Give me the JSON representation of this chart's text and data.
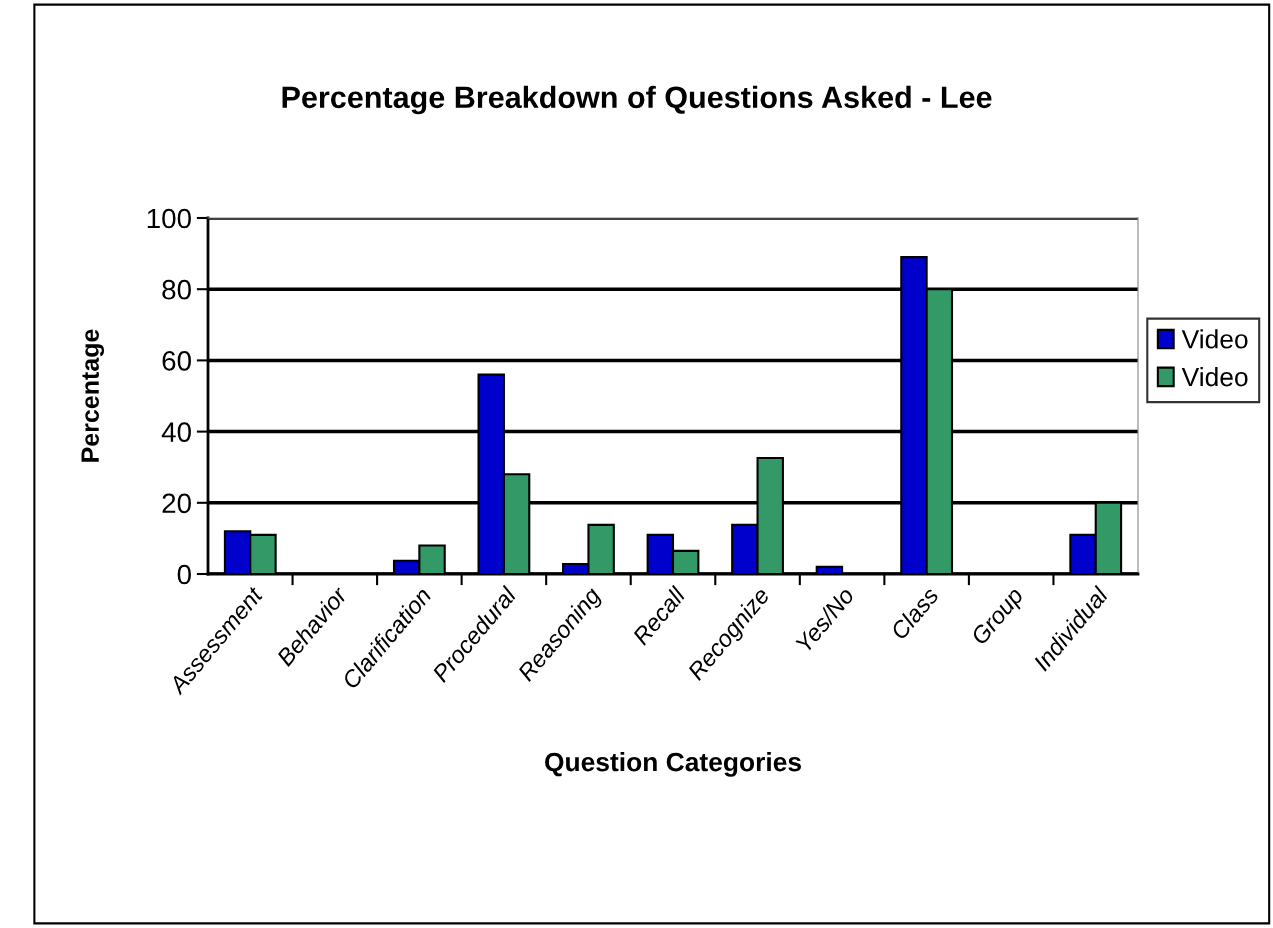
{
  "chart_data": {
    "type": "bar",
    "title": "Percentage Breakdown of Questions Asked - Lee",
    "xlabel": "Question Categories",
    "ylabel": "Percentage",
    "categories": [
      "Assessment",
      "Behavior",
      "Clarification",
      "Procedural",
      "Reasoning",
      "Recall",
      "Recognize",
      "Yes/No",
      "Class",
      "Group",
      "Individual"
    ],
    "series": [
      {
        "name": "Video",
        "color": "#0000cc",
        "values": [
          12,
          0,
          3.7,
          56,
          2.8,
          11,
          13.8,
          2,
          89,
          0,
          11
        ]
      },
      {
        "name": "Video",
        "color": "#339966",
        "values": [
          11,
          0,
          8,
          28,
          13.8,
          6.5,
          32.6,
          0,
          80,
          0,
          20
        ]
      }
    ],
    "ylim": [
      0,
      100
    ],
    "yticks": [
      0,
      20,
      40,
      60,
      80,
      100
    ],
    "grid": "y",
    "legend": "right"
  }
}
